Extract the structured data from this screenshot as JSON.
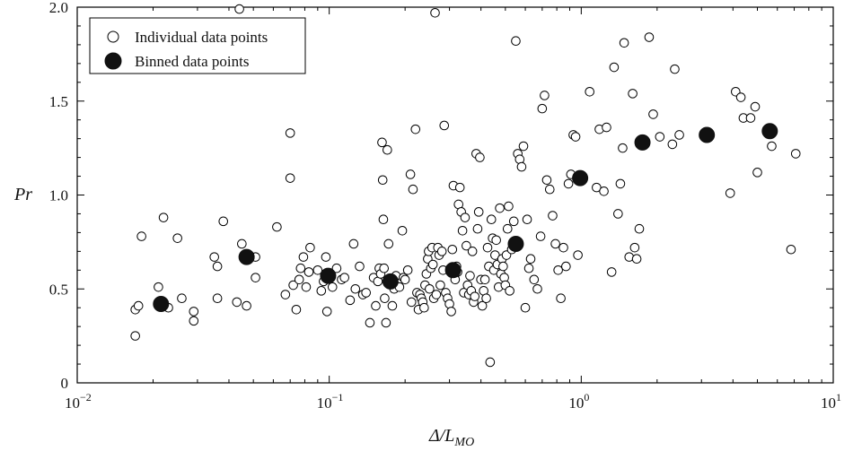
{
  "chart_data": {
    "type": "scatter",
    "xscale": "log",
    "xlim": [
      0.01,
      10
    ],
    "ylim": [
      0,
      2.0
    ],
    "xlabel": "Δ/L",
    "xlabel_sub": "MO",
    "ylabel": "Pr",
    "x_ticks": [
      {
        "value": 0.01,
        "base": "10",
        "exp": "−2"
      },
      {
        "value": 0.1,
        "base": "10",
        "exp": "−1"
      },
      {
        "value": 1,
        "base": "10",
        "exp": "0"
      },
      {
        "value": 10,
        "base": "10",
        "exp": "1"
      }
    ],
    "y_ticks": [
      {
        "value": 0,
        "label": "0"
      },
      {
        "value": 0.5,
        "label": "0.5"
      },
      {
        "value": 1.0,
        "label": "1.0"
      },
      {
        "value": 1.5,
        "label": "1.5"
      },
      {
        "value": 2.0,
        "label": "2.0"
      }
    ],
    "legend": {
      "position": "top-left",
      "entries": [
        {
          "label": "Individual data points",
          "marker": "open-circle"
        },
        {
          "label": "Binned data points",
          "marker": "filled-circle"
        }
      ]
    },
    "series": [
      {
        "name": "Individual data points",
        "marker": "open-circle",
        "points": [
          [
            0.017,
            0.25
          ],
          [
            0.017,
            0.39
          ],
          [
            0.0175,
            0.41
          ],
          [
            0.018,
            0.78
          ],
          [
            0.021,
            0.51
          ],
          [
            0.022,
            0.88
          ],
          [
            0.023,
            0.4
          ],
          [
            0.025,
            0.77
          ],
          [
            0.026,
            0.45
          ],
          [
            0.029,
            0.33
          ],
          [
            0.029,
            0.38
          ],
          [
            0.035,
            0.67
          ],
          [
            0.036,
            0.62
          ],
          [
            0.036,
            0.45
          ],
          [
            0.038,
            0.86
          ],
          [
            0.043,
            0.43
          ],
          [
            0.044,
            1.99
          ],
          [
            0.045,
            0.74
          ],
          [
            0.047,
            0.41
          ],
          [
            0.051,
            0.56
          ],
          [
            0.051,
            0.67
          ],
          [
            0.062,
            0.83
          ],
          [
            0.067,
            0.47
          ],
          [
            0.07,
            1.33
          ],
          [
            0.07,
            1.09
          ],
          [
            0.072,
            0.52
          ],
          [
            0.074,
            0.39
          ],
          [
            0.076,
            0.55
          ],
          [
            0.077,
            0.61
          ],
          [
            0.079,
            0.67
          ],
          [
            0.081,
            0.51
          ],
          [
            0.083,
            0.59
          ],
          [
            0.084,
            0.72
          ],
          [
            0.09,
            0.6
          ],
          [
            0.093,
            0.49
          ],
          [
            0.095,
            0.54
          ],
          [
            0.097,
            0.67
          ],
          [
            0.098,
            0.38
          ],
          [
            0.103,
            0.51
          ],
          [
            0.107,
            0.61
          ],
          [
            0.112,
            0.55
          ],
          [
            0.115,
            0.56
          ],
          [
            0.121,
            0.44
          ],
          [
            0.125,
            0.74
          ],
          [
            0.127,
            0.5
          ],
          [
            0.132,
            0.62
          ],
          [
            0.136,
            0.47
          ],
          [
            0.14,
            0.48
          ],
          [
            0.145,
            0.32
          ],
          [
            0.15,
            0.56
          ],
          [
            0.153,
            0.41
          ],
          [
            0.156,
            0.54
          ],
          [
            0.158,
            0.61
          ],
          [
            0.16,
            0.58
          ],
          [
            0.162,
            1.28
          ],
          [
            0.163,
            1.08
          ],
          [
            0.164,
            0.87
          ],
          [
            0.165,
            0.61
          ],
          [
            0.166,
            0.45
          ],
          [
            0.168,
            0.32
          ],
          [
            0.17,
            1.24
          ],
          [
            0.172,
            0.74
          ],
          [
            0.175,
            0.55
          ],
          [
            0.178,
            0.41
          ],
          [
            0.181,
            0.5
          ],
          [
            0.184,
            0.57
          ],
          [
            0.19,
            0.51
          ],
          [
            0.195,
            0.81
          ],
          [
            0.197,
            0.56
          ],
          [
            0.2,
            0.55
          ],
          [
            0.205,
            0.6
          ],
          [
            0.21,
            1.11
          ],
          [
            0.212,
            0.43
          ],
          [
            0.215,
            1.03
          ],
          [
            0.22,
            1.35
          ],
          [
            0.223,
            0.48
          ],
          [
            0.226,
            0.39
          ],
          [
            0.229,
            0.47
          ],
          [
            0.232,
            0.45
          ],
          [
            0.235,
            0.43
          ],
          [
            0.238,
            0.4
          ],
          [
            0.24,
            0.52
          ],
          [
            0.243,
            0.58
          ],
          [
            0.246,
            0.66
          ],
          [
            0.248,
            0.7
          ],
          [
            0.25,
            0.5
          ],
          [
            0.253,
            0.61
          ],
          [
            0.256,
            0.72
          ],
          [
            0.258,
            0.63
          ],
          [
            0.26,
            0.45
          ],
          [
            0.263,
            1.97
          ],
          [
            0.266,
            0.47
          ],
          [
            0.27,
            0.72
          ],
          [
            0.273,
            0.68
          ],
          [
            0.276,
            0.52
          ],
          [
            0.28,
            0.7
          ],
          [
            0.283,
            0.6
          ],
          [
            0.286,
            1.37
          ],
          [
            0.29,
            0.48
          ],
          [
            0.295,
            0.45
          ],
          [
            0.3,
            0.42
          ],
          [
            0.305,
            0.38
          ],
          [
            0.308,
            0.71
          ],
          [
            0.311,
            1.05
          ],
          [
            0.316,
            0.55
          ],
          [
            0.32,
            0.62
          ],
          [
            0.323,
            0.59
          ],
          [
            0.326,
            0.95
          ],
          [
            0.33,
            1.04
          ],
          [
            0.334,
            0.91
          ],
          [
            0.338,
            0.81
          ],
          [
            0.342,
            0.48
          ],
          [
            0.346,
            0.88
          ],
          [
            0.35,
            0.73
          ],
          [
            0.354,
            0.52
          ],
          [
            0.358,
            0.47
          ],
          [
            0.362,
            0.57
          ],
          [
            0.366,
            0.49
          ],
          [
            0.37,
            0.7
          ],
          [
            0.374,
            0.43
          ],
          [
            0.378,
            0.46
          ],
          [
            0.383,
            1.22
          ],
          [
            0.388,
            0.82
          ],
          [
            0.392,
            0.91
          ],
          [
            0.396,
            1.2
          ],
          [
            0.4,
            0.55
          ],
          [
            0.405,
            0.41
          ],
          [
            0.41,
            0.49
          ],
          [
            0.415,
            0.55
          ],
          [
            0.42,
            0.45
          ],
          [
            0.425,
            0.72
          ],
          [
            0.43,
            0.62
          ],
          [
            0.435,
            0.11
          ],
          [
            0.44,
            0.87
          ],
          [
            0.445,
            0.77
          ],
          [
            0.45,
            0.6
          ],
          [
            0.455,
            0.68
          ],
          [
            0.46,
            0.76
          ],
          [
            0.465,
            0.63
          ],
          [
            0.47,
            0.51
          ],
          [
            0.475,
            0.93
          ],
          [
            0.48,
            0.58
          ],
          [
            0.485,
            0.66
          ],
          [
            0.49,
            0.62
          ],
          [
            0.495,
            0.56
          ],
          [
            0.5,
            0.52
          ],
          [
            0.505,
            0.68
          ],
          [
            0.51,
            0.82
          ],
          [
            0.515,
            0.94
          ],
          [
            0.52,
            0.49
          ],
          [
            0.53,
            0.71
          ],
          [
            0.54,
            0.86
          ],
          [
            0.55,
            1.82
          ],
          [
            0.56,
            1.22
          ],
          [
            0.57,
            1.19
          ],
          [
            0.58,
            1.15
          ],
          [
            0.59,
            1.26
          ],
          [
            0.6,
            0.4
          ],
          [
            0.61,
            0.87
          ],
          [
            0.62,
            0.61
          ],
          [
            0.63,
            0.66
          ],
          [
            0.65,
            0.55
          ],
          [
            0.67,
            0.5
          ],
          [
            0.69,
            0.78
          ],
          [
            0.7,
            1.46
          ],
          [
            0.715,
            1.53
          ],
          [
            0.73,
            1.08
          ],
          [
            0.75,
            1.03
          ],
          [
            0.77,
            0.89
          ],
          [
            0.79,
            0.74
          ],
          [
            0.81,
            0.6
          ],
          [
            0.83,
            0.45
          ],
          [
            0.85,
            0.72
          ],
          [
            0.87,
            0.62
          ],
          [
            0.89,
            1.06
          ],
          [
            0.91,
            1.11
          ],
          [
            0.93,
            1.32
          ],
          [
            0.95,
            1.31
          ],
          [
            0.97,
            0.68
          ],
          [
            1.08,
            1.55
          ],
          [
            1.15,
            1.04
          ],
          [
            1.18,
            1.35
          ],
          [
            1.23,
            1.02
          ],
          [
            1.26,
            1.36
          ],
          [
            1.32,
            0.59
          ],
          [
            1.35,
            1.68
          ],
          [
            1.4,
            0.9
          ],
          [
            1.43,
            1.06
          ],
          [
            1.46,
            1.25
          ],
          [
            1.48,
            1.81
          ],
          [
            1.55,
            0.67
          ],
          [
            1.6,
            1.54
          ],
          [
            1.63,
            0.72
          ],
          [
            1.66,
            0.66
          ],
          [
            1.7,
            0.82
          ],
          [
            1.86,
            1.84
          ],
          [
            1.93,
            1.43
          ],
          [
            2.05,
            1.31
          ],
          [
            2.3,
            1.27
          ],
          [
            2.35,
            1.67
          ],
          [
            2.45,
            1.32
          ],
          [
            3.9,
            1.01
          ],
          [
            4.1,
            1.55
          ],
          [
            4.3,
            1.52
          ],
          [
            4.4,
            1.41
          ],
          [
            4.7,
            1.41
          ],
          [
            4.9,
            1.47
          ],
          [
            5.0,
            1.12
          ],
          [
            5.7,
            1.26
          ],
          [
            6.8,
            0.71
          ],
          [
            7.1,
            1.22
          ]
        ]
      },
      {
        "name": "Binned data points",
        "marker": "filled-circle",
        "points": [
          [
            0.0215,
            0.42
          ],
          [
            0.047,
            0.67
          ],
          [
            0.099,
            0.57
          ],
          [
            0.175,
            0.54
          ],
          [
            0.31,
            0.6
          ],
          [
            0.55,
            0.74
          ],
          [
            0.99,
            1.09
          ],
          [
            1.75,
            1.28
          ],
          [
            3.15,
            1.32
          ],
          [
            5.6,
            1.34
          ]
        ]
      }
    ]
  }
}
